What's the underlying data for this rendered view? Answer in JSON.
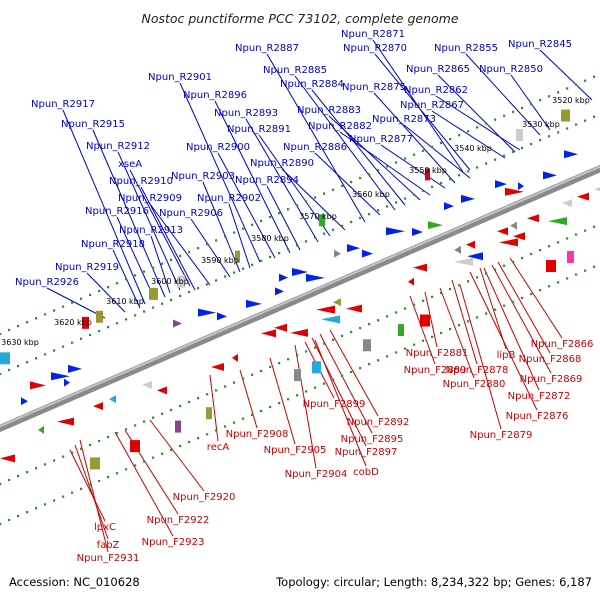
{
  "title": "Nostoc punctiforme PCC 73102, complete genome",
  "footer": {
    "accession": "Accession: NC_010628",
    "summary": "Topology: circular; Length: 8,234,322 bp; Genes: 6,187"
  },
  "colors": {
    "forward_label": "#0000cc",
    "reverse_label": "#cc0000",
    "backbone": "#888888",
    "tick": "#2e8b2e"
  },
  "kbp_ticks": [
    "3520 kbp",
    "3530 kbp",
    "3540 kbp",
    "3550 kbp",
    "3560 kbp",
    "3570 kbp",
    "3580 kbp",
    "3590 kbp",
    "3600 kbp",
    "3610 kbp",
    "3620 kbp",
    "3630 kbp"
  ],
  "forward_labels": [
    "Npun_R2845",
    "Npun_R2850",
    "Npun_R2855",
    "Npun_R2862",
    "Npun_R2865",
    "Npun_R2867",
    "Npun_R2870",
    "Npun_R2871",
    "Npun_R2873",
    "Npun_R2875",
    "Npun_R2877",
    "Npun_R2882",
    "Npun_R2883",
    "Npun_R2884",
    "Npun_R2885",
    "Npun_R2886",
    "Npun_R2887",
    "Npun_R2890",
    "Npun_R2891",
    "Npun_R2893",
    "Npun_R2894",
    "Npun_R2896",
    "Npun_R2900",
    "Npun_R2901",
    "Npun_R2902",
    "Npun_R2903",
    "Npun_R2906",
    "Npun_R2909",
    "Npun_R2910",
    "Npun_R2912",
    "Npun_R2913",
    "Npun_R2915",
    "Npun_R2916",
    "Npun_R2917",
    "Npun_R2918",
    "Npun_R2919",
    "Npun_R2926",
    "xseA"
  ],
  "reverse_labels": [
    "Npun_F2866",
    "Npun_F2868",
    "Npun_F2869",
    "Npun_F2872",
    "Npun_F2876",
    "Npun_F2878",
    "Npun_F2879",
    "Npun_F2880",
    "Npun_F2881",
    "Npun_F2889",
    "Npun_F2892",
    "Npun_F2895",
    "Npun_F2897",
    "Npun_F2899",
    "Npun_F2904",
    "Npun_F2905",
    "Npun_F2908",
    "Npun_F2920",
    "Npun_F2922",
    "Npun_F2923",
    "Npun_F2931",
    "cobD",
    "fabZ",
    "lipB",
    "lpxC",
    "recA"
  ]
}
